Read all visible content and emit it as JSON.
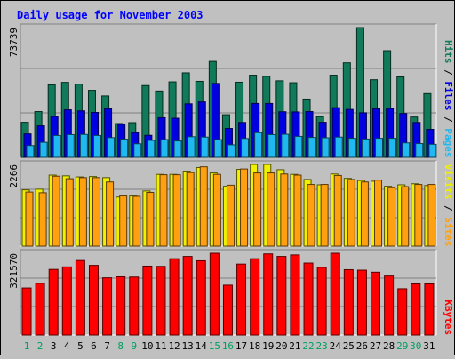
{
  "chart_data": {
    "type": "bar",
    "title": "Daily usage for November 2003",
    "categories": [
      "1",
      "2",
      "3",
      "4",
      "5",
      "6",
      "7",
      "8",
      "9",
      "10",
      "11",
      "12",
      "13",
      "14",
      "15",
      "16",
      "17",
      "18",
      "19",
      "20",
      "21",
      "22",
      "23",
      "24",
      "25",
      "26",
      "27",
      "28",
      "29",
      "30",
      "31"
    ],
    "weekend_days": [
      "1",
      "2",
      "8",
      "9",
      "15",
      "16",
      "22",
      "23",
      "29",
      "30"
    ],
    "panels": [
      {
        "name": "hits-files-pages",
        "ymax_label": "73739",
        "ylim": [
          0,
          73739
        ],
        "legend": [
          "Pages",
          "Files",
          "Hits"
        ],
        "series": [
          {
            "name": "Hits",
            "color": "#117a5a",
            "values": [
              19900,
              26000,
              41200,
              42600,
              41600,
              38100,
              34900,
              19200,
              19700,
              40800,
              37700,
              42900,
              48000,
              43200,
              54500,
              24200,
              42700,
              46700,
              46000,
              43500,
              42400,
              33100,
              23100,
              46700,
              53700,
              73739,
              44100,
              60600,
              45700,
              22900,
              36200
            ]
          },
          {
            "name": "Files",
            "color": "#0000e0",
            "values": [
              13300,
              17900,
              23200,
              27000,
              26400,
              25500,
              27600,
              18700,
              14000,
              12500,
              22500,
              22200,
              30400,
              31500,
              42000,
              16400,
              19800,
              30600,
              30600,
              25900,
              25800,
              26000,
              19900,
              28200,
              27200,
              25300,
              27500,
              27700,
              24900,
              19800,
              15900
            ]
          },
          {
            "name": "Pages",
            "color": "#20b8f0",
            "values": [
              6700,
              8500,
              12400,
              12900,
              13000,
              12400,
              11200,
              10300,
              7700,
              9600,
              10100,
              9300,
              11700,
              11500,
              10100,
              7100,
              10700,
              14000,
              12900,
              13100,
              11900,
              11300,
              11100,
              11500,
              10800,
              10400,
              10800,
              10800,
              8200,
              7800,
              7400
            ]
          }
        ]
      },
      {
        "name": "visits-sites",
        "ymax_label": "2266",
        "ylim": [
          0,
          2266
        ],
        "legend": [
          "Sites",
          "Visits"
        ],
        "series": [
          {
            "name": "Visits",
            "color": "#f0f000",
            "values": [
              1560,
              1580,
              1970,
              1950,
              1920,
              1930,
              1900,
              1360,
              1390,
              1530,
              1990,
              1990,
              2080,
              2180,
              2030,
              1660,
              2130,
              2266,
              2266,
              2120,
              1990,
              1850,
              1700,
              2000,
              1880,
              1820,
              1800,
              1660,
              1700,
              1730,
              1680
            ]
          },
          {
            "name": "Sites",
            "color": "#ffa010",
            "values": [
              1500,
              1480,
              1940,
              1870,
              1900,
              1900,
              1780,
              1390,
              1380,
              1490,
              1980,
              1980,
              2040,
              2200,
              1990,
              1690,
              2140,
              2030,
              2030,
              2000,
              1970,
              1710,
              1710,
              1960,
              1850,
              1780,
              1830,
              1620,
              1650,
              1710,
              1710
            ]
          }
        ]
      },
      {
        "name": "kbytes",
        "ymax_label": "321570",
        "ylim": [
          0,
          321570
        ],
        "legend": [
          "KBytes"
        ],
        "series": [
          {
            "name": "KBytes",
            "color": "#ff0000",
            "values": [
              185000,
              203000,
              258000,
              268000,
              293000,
              274000,
              225000,
              229000,
              228000,
              271000,
              270000,
              300000,
              309000,
              292000,
              321570,
              196000,
              279000,
              300000,
              319000,
              309000,
              315000,
              283000,
              266000,
              321570,
              257000,
              255000,
              247000,
              232000,
              182000,
              201000,
              201000
            ]
          }
        ]
      }
    ]
  },
  "colors": {
    "background": "#c0c0c0",
    "title": "#0000ff",
    "weekday_label": "#000000",
    "weekend_label": "#00a060",
    "gridline": "#808080"
  }
}
